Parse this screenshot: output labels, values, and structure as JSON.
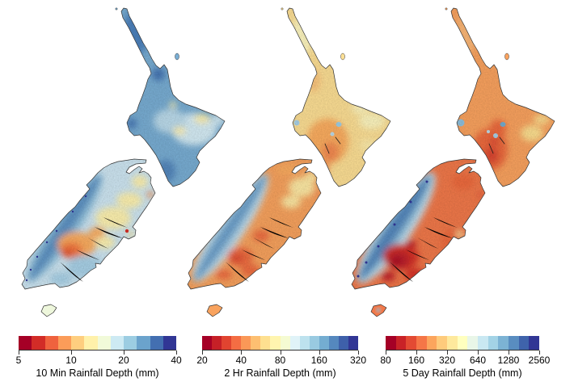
{
  "figure": {
    "background": "#ffffff",
    "region": "New Zealand",
    "panels": [
      {
        "id": "10min",
        "title": "10 Min Rainfall Depth (mm)",
        "ticks": [
          "5",
          "10",
          "20",
          "40"
        ],
        "colorbar_colors": [
          "#a50026",
          "#d22c27",
          "#ef623e",
          "#fb9c59",
          "#fece7f",
          "#fff1aa",
          "#f1fad9",
          "#cdeaf3",
          "#9ccde2",
          "#6ba3cc",
          "#436fb1",
          "#313695"
        ]
      },
      {
        "id": "2hr",
        "title": "2 Hr Rainfall Depth (mm)",
        "ticks": [
          "20",
          "40",
          "80",
          "160",
          "320"
        ],
        "colorbar_colors": [
          "#a50026",
          "#c62027",
          "#e14430",
          "#f46d43",
          "#fa9857",
          "#fdbf71",
          "#fee090",
          "#fff5af",
          "#f5fbd2",
          "#e0f3f8",
          "#bde2ee",
          "#99cae1",
          "#74add1",
          "#5588be",
          "#3e60aa",
          "#313695"
        ]
      },
      {
        "id": "5day",
        "title": "5 Day Rainfall Depth (mm)",
        "ticks": [
          "80",
          "160",
          "320",
          "640",
          "1280",
          "2560"
        ],
        "colorbar_colors": [
          "#a50026",
          "#c92227",
          "#e34a33",
          "#f57647",
          "#fca55d",
          "#fecb7c",
          "#fee99d",
          "#ffffbf",
          "#e9f6e8",
          "#c9e8f2",
          "#a3d3e6",
          "#7cb3d4",
          "#598dc0",
          "#3f63ab",
          "#313695"
        ]
      }
    ]
  },
  "chart_data": [
    {
      "type": "heatmap",
      "subtype": "geographic-raster-map",
      "region": "New Zealand",
      "title": "10 Min Rainfall Depth (mm)",
      "units": "mm",
      "scale": "log2",
      "legend_ticks": [
        5,
        10,
        20,
        40
      ],
      "n_color_classes": 12,
      "colormap": "RdYlBu (dark red = low, dark blue = high)",
      "pattern_summary": "North Island mostly blue (high, ~20-40 mm), strongest in Northland and Taranaki; South Island pale blue coasts with orange/red low values (~5-8 mm) in interior Canterbury/Otago; medium blue band along the western Southern Alps"
    },
    {
      "type": "heatmap",
      "subtype": "geographic-raster-map",
      "region": "New Zealand",
      "title": "2 Hr Rainfall Depth (mm)",
      "units": "mm",
      "scale": "log2",
      "legend_ticks": [
        20,
        40,
        80,
        160,
        320
      ],
      "n_color_classes": 16,
      "colormap": "RdYlBu (dark red = low, dark blue = high)",
      "pattern_summary": "North Island pale yellow-orange (~60-100 mm) with deeper orange in the southern/central ranges and small blue spots at Mt Taranaki and Lake Taupo; South Island orange (low ~40 mm) with a light-blue high band along the Southern Alps spine"
    },
    {
      "type": "heatmap",
      "subtype": "geographic-raster-map",
      "region": "New Zealand",
      "title": "5 Day Rainfall Depth (mm)",
      "units": "mm",
      "scale": "log2",
      "legend_ticks": [
        80,
        160,
        320,
        640,
        1280,
        2560
      ],
      "n_color_classes": 15,
      "colormap": "RdYlBu (dark red = low, dark blue = high)",
      "pattern_summary": "North Island orange (~200-400 mm) with red core in the south and blue dots at Mt Taranaki/Lake Taupo; South Island has a wide blue high band (up to ~2560 mm) along the western Southern Alps and dark red lows (~80-160 mm) in Central Otago"
    }
  ]
}
